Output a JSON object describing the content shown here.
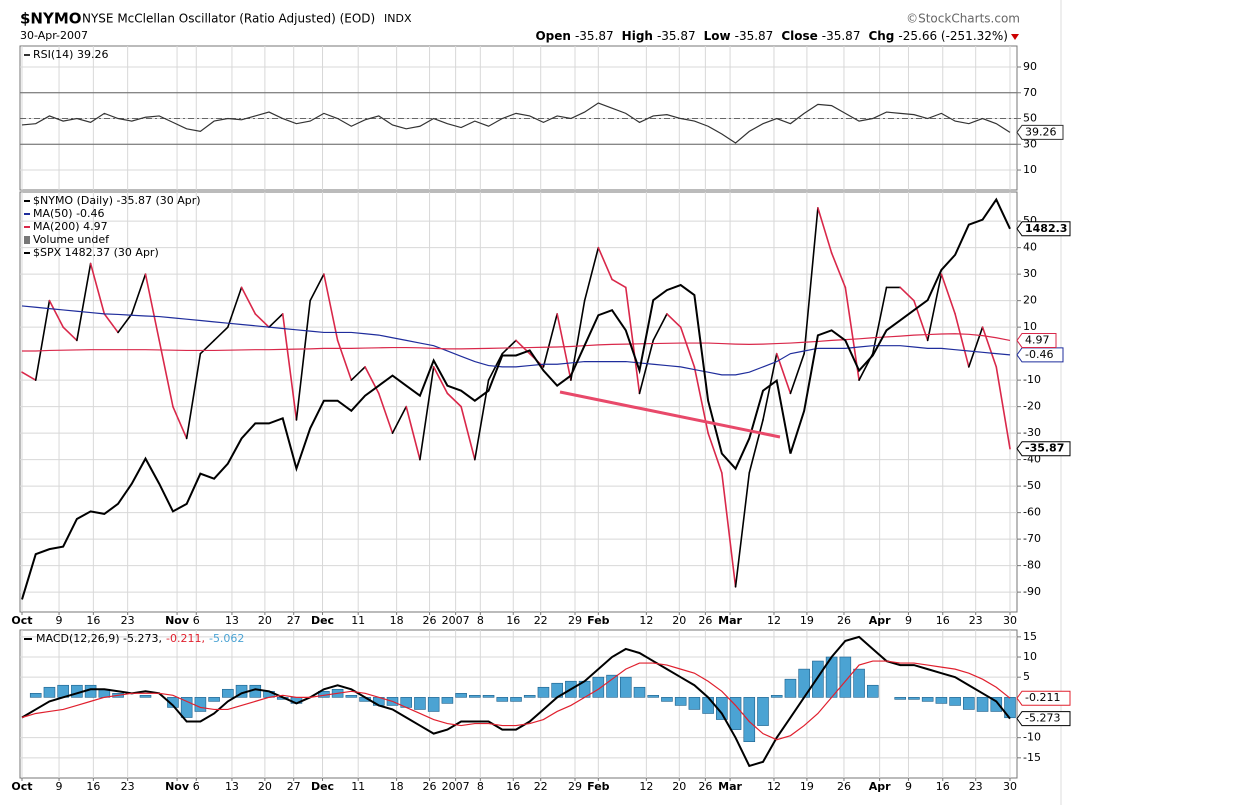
{
  "header": {
    "symbol": "$NYMO",
    "title": "NYSE McClellan Oscillator (Ratio Adjusted) (EOD)",
    "exchange": "INDX",
    "source": "©StockCharts.com",
    "date": "30-Apr-2007",
    "quote": [
      {
        "label": "Open",
        "value": "-35.87"
      },
      {
        "label": "High",
        "value": "-35.87"
      },
      {
        "label": "Low",
        "value": "-35.87"
      },
      {
        "label": "Close",
        "value": "-35.87"
      },
      {
        "label": "Chg",
        "value": "-25.66 (-251.32%)"
      }
    ]
  },
  "chart_data": [
    {
      "type": "line",
      "xlim": [
        0,
        72
      ],
      "ylim": [
        -5.5,
        106.3
      ],
      "yticks": [
        90,
        70,
        50,
        30,
        10
      ],
      "grid": true,
      "upper_line": 70,
      "lower_line": 30,
      "center_line": 50,
      "series": [
        {
          "name": "RSI(14) 39.26",
          "style": "line",
          "color": "#333333",
          "last_label": "39.26",
          "values": [
            45,
            46,
            52,
            48,
            50,
            47,
            54,
            50,
            48,
            51,
            52,
            47,
            42,
            40,
            48,
            50,
            49,
            52,
            55,
            50,
            46,
            48,
            54,
            50,
            44,
            49,
            52,
            45,
            42,
            44,
            50,
            46,
            43,
            48,
            44,
            50,
            54,
            52,
            47,
            52,
            50,
            55,
            62,
            58,
            54,
            47,
            52,
            53,
            50,
            48,
            44,
            38,
            31,
            40,
            46,
            50,
            46,
            54,
            61,
            60,
            54,
            48,
            50,
            55,
            54,
            53,
            50,
            54,
            48,
            46,
            50,
            46,
            39.26
          ]
        }
      ]
    },
    {
      "type": "line",
      "xlim": [
        0,
        72
      ],
      "ylim": [
        -97.5,
        61
      ],
      "y2lim": [
        1330,
        1497
      ],
      "yticks": [
        50,
        40,
        30,
        20,
        10,
        -10,
        -20,
        -30,
        -40,
        -50,
        -60,
        -70,
        -80,
        -90
      ],
      "grid": true,
      "volume_label": "Volume undef",
      "xticks": [
        {
          "value": 0,
          "label": "Oct"
        },
        {
          "value": 2.7,
          "label": "9"
        },
        {
          "value": 5.2,
          "label": "16"
        },
        {
          "value": 7.7,
          "label": "23"
        },
        {
          "value": 11.3,
          "label": "Nov"
        },
        {
          "value": 12.7,
          "label": "6"
        },
        {
          "value": 15.3,
          "label": "13"
        },
        {
          "value": 17.7,
          "label": "20"
        },
        {
          "value": 19.8,
          "label": "27"
        },
        {
          "value": 21.9,
          "label": "Dec"
        },
        {
          "value": 24.5,
          "label": "11"
        },
        {
          "value": 27.3,
          "label": "18"
        },
        {
          "value": 29.7,
          "label": "26"
        },
        {
          "value": 31.6,
          "label": "2007"
        },
        {
          "value": 33.4,
          "label": "8"
        },
        {
          "value": 35.8,
          "label": "16"
        },
        {
          "value": 37.8,
          "label": "22"
        },
        {
          "value": 40.3,
          "label": "29"
        },
        {
          "value": 42.0,
          "label": "Feb"
        },
        {
          "value": 45.5,
          "label": "12"
        },
        {
          "value": 47.9,
          "label": "20"
        },
        {
          "value": 49.8,
          "label": "26"
        },
        {
          "value": 51.6,
          "label": "Mar"
        },
        {
          "value": 54.8,
          "label": "12"
        },
        {
          "value": 57.2,
          "label": "19"
        },
        {
          "value": 59.9,
          "label": "26"
        },
        {
          "value": 62.5,
          "label": "Apr"
        },
        {
          "value": 64.6,
          "label": "9"
        },
        {
          "value": 67.1,
          "label": "16"
        },
        {
          "value": 69.5,
          "label": "23"
        },
        {
          "value": 72,
          "label": "30"
        }
      ],
      "series": [
        {
          "name": "$NYMO (Daily) -35.87 (30 Apr)",
          "style": "updown",
          "color": "#000000",
          "down_color": "#d9284a",
          "last_label": "-35.87",
          "values": [
            -7,
            -10,
            20,
            10,
            5,
            34,
            15,
            8,
            15,
            30,
            5,
            -20,
            -32,
            0,
            5,
            10,
            25,
            15,
            10,
            15,
            -25,
            20,
            30,
            5,
            -10,
            -5,
            -15,
            -30,
            -20,
            -40,
            -5,
            -15,
            -20,
            -40,
            -10,
            0,
            5,
            0,
            -5,
            15,
            -10,
            20,
            40,
            28,
            25,
            -15,
            5,
            15,
            10,
            -5,
            -30,
            -45,
            -88,
            -45,
            -25,
            0,
            -15,
            0,
            55,
            38,
            25,
            -10,
            0,
            25,
            25,
            20,
            5,
            30,
            15,
            -5,
            10,
            -5,
            -35.87
          ]
        },
        {
          "name": "MA(50) -0.46",
          "style": "line",
          "color": "#1f2d9c",
          "last_label": "-0.46",
          "values": [
            18,
            17.5,
            17,
            16.5,
            16,
            15.5,
            15,
            14.8,
            14.5,
            14.2,
            14,
            13.5,
            13,
            12.5,
            12,
            11.5,
            11,
            10.5,
            10,
            9.5,
            9,
            8.5,
            8,
            8,
            8,
            7.5,
            7,
            6,
            5,
            4,
            3,
            1,
            -1,
            -3,
            -4.5,
            -5,
            -5,
            -4.5,
            -4,
            -4,
            -3.5,
            -3,
            -3,
            -3,
            -3,
            -3.5,
            -4,
            -4.5,
            -5,
            -6,
            -7,
            -8,
            -8,
            -7,
            -5,
            -3,
            0,
            1,
            2,
            2,
            2,
            2.5,
            3,
            3,
            3,
            2.5,
            2,
            2,
            1.5,
            1,
            0.5,
            0,
            -0.46
          ]
        },
        {
          "name": "MA(200) 4.97",
          "style": "line",
          "color": "#d9284a",
          "last_label": "4.97",
          "values": [
            1,
            1,
            1.2,
            1.3,
            1.4,
            1.5,
            1.5,
            1.5,
            1.5,
            1.5,
            1.4,
            1.3,
            1.2,
            1.2,
            1.2,
            1.3,
            1.4,
            1.5,
            1.5,
            1.6,
            1.7,
            1.8,
            2,
            2,
            2,
            2.1,
            2.2,
            2.3,
            2.3,
            2.2,
            2,
            1.8,
            1.8,
            1.9,
            2,
            2.1,
            2.2,
            2.3,
            2.4,
            2.5,
            2.7,
            3,
            3.3,
            3.5,
            3.6,
            3.7,
            3.8,
            3.9,
            4,
            4,
            4,
            3.8,
            3.6,
            3.5,
            3.6,
            3.8,
            4,
            4.3,
            4.6,
            5,
            5.3,
            5.6,
            6,
            6.3,
            6.6,
            7,
            7.2,
            7.4,
            7.5,
            7.3,
            6.8,
            6,
            4.97
          ]
        },
        {
          "name": "$SPX 1482.37 (30 Apr)",
          "style": "line",
          "color": "#000000",
          "axis": "y2",
          "last_label": "1482.3",
          "values": [
            1335,
            1353,
            1355,
            1356,
            1367,
            1370,
            1369,
            1373,
            1381,
            1391,
            1381,
            1370,
            1373,
            1385,
            1383,
            1389,
            1399,
            1405,
            1405,
            1407,
            1387,
            1403,
            1414,
            1414,
            1410,
            1416,
            1420,
            1424,
            1420,
            1416,
            1430,
            1420,
            1418,
            1414,
            1418,
            1432,
            1432,
            1434,
            1426,
            1420,
            1424,
            1436,
            1448,
            1450,
            1442,
            1426,
            1454,
            1458,
            1460,
            1456,
            1414,
            1393,
            1387,
            1399,
            1418,
            1422,
            1393,
            1410,
            1440,
            1442,
            1438,
            1426,
            1432,
            1442,
            1446,
            1450,
            1454,
            1466,
            1472,
            1484,
            1486,
            1494,
            1482.37
          ]
        }
      ]
    },
    {
      "type": "line",
      "xlim": [
        0,
        72
      ],
      "ylim": [
        -20,
        16.7
      ],
      "yticks": [
        15,
        10,
        5,
        -10,
        -15
      ],
      "grid": true,
      "xticks": [
        {
          "value": 0,
          "label": "Oct"
        },
        {
          "value": 2.7,
          "label": "9"
        },
        {
          "value": 5.2,
          "label": "16"
        },
        {
          "value": 7.7,
          "label": "23"
        },
        {
          "value": 11.3,
          "label": "Nov"
        },
        {
          "value": 12.7,
          "label": "6"
        },
        {
          "value": 15.3,
          "label": "13"
        },
        {
          "value": 17.7,
          "label": "20"
        },
        {
          "value": 19.8,
          "label": "27"
        },
        {
          "value": 21.9,
          "label": "Dec"
        },
        {
          "value": 24.5,
          "label": "11"
        },
        {
          "value": 27.3,
          "label": "18"
        },
        {
          "value": 29.7,
          "label": "26"
        },
        {
          "value": 31.6,
          "label": "2007"
        },
        {
          "value": 33.4,
          "label": "8"
        },
        {
          "value": 35.8,
          "label": "16"
        },
        {
          "value": 37.8,
          "label": "22"
        },
        {
          "value": 40.3,
          "label": "29"
        },
        {
          "value": 42.0,
          "label": "Feb"
        },
        {
          "value": 45.5,
          "label": "12"
        },
        {
          "value": 47.9,
          "label": "20"
        },
        {
          "value": 49.8,
          "label": "26"
        },
        {
          "value": 51.6,
          "label": "Mar"
        },
        {
          "value": 54.8,
          "label": "12"
        },
        {
          "value": 57.2,
          "label": "19"
        },
        {
          "value": 59.9,
          "label": "26"
        },
        {
          "value": 62.5,
          "label": "Apr"
        },
        {
          "value": 64.6,
          "label": "9"
        },
        {
          "value": 67.1,
          "label": "16"
        },
        {
          "value": 69.5,
          "label": "23"
        },
        {
          "value": 72,
          "label": "30"
        }
      ],
      "series": [
        {
          "name": "MACD(12,26,9) -5.273,",
          "style": "line",
          "color": "#000000",
          "last_label": "-5.273",
          "values": [
            -5,
            -3,
            -1,
            0,
            1,
            2,
            2,
            1.5,
            1,
            1.5,
            1,
            -2,
            -6,
            -6,
            -4,
            -1,
            1,
            2,
            1.5,
            0,
            -1.5,
            0,
            2,
            3,
            2,
            0,
            -2,
            -3,
            -5,
            -7,
            -9,
            -8,
            -6,
            -6,
            -6,
            -8,
            -8,
            -6,
            -3,
            0,
            2,
            4,
            7,
            10,
            12,
            11,
            9,
            7,
            5,
            3,
            0,
            -4,
            -10,
            -17,
            -16,
            -10,
            -5,
            0,
            5,
            10,
            14,
            15,
            12,
            9,
            8,
            8,
            7,
            6,
            5,
            3,
            1,
            -1,
            -5.273
          ]
        },
        {
          "name": "-0.211,",
          "style": "line",
          "color": "#e0202e",
          "last_label": "-0.211",
          "values": [
            -5,
            -4,
            -3.5,
            -3,
            -2,
            -1,
            0,
            0.5,
            1,
            1,
            1,
            0.5,
            -1,
            -2.5,
            -3,
            -3,
            -2,
            -1,
            0,
            0.5,
            0,
            0,
            0.5,
            1,
            1.5,
            1,
            0,
            -1,
            -2.5,
            -4,
            -5.5,
            -6.5,
            -7,
            -6.5,
            -6.5,
            -7,
            -7,
            -6.5,
            -5.5,
            -3.5,
            -2,
            0,
            2,
            4.5,
            7,
            8.5,
            8.5,
            8,
            7,
            6,
            4,
            1.5,
            -2,
            -6,
            -9,
            -10.5,
            -9.5,
            -7,
            -4,
            0,
            4,
            8,
            9,
            9,
            8.5,
            8.5,
            8,
            7.5,
            7,
            6,
            4.5,
            2.5,
            -0.211
          ]
        },
        {
          "name": "-5.062",
          "style": "histogram",
          "color": "#4ba3d3",
          "edge_color": "#1d5f8a",
          "values": [
            0,
            1,
            2.5,
            3,
            3,
            3,
            2,
            1,
            0,
            0.5,
            0,
            -2.5,
            -5,
            -3.5,
            -1,
            2,
            3,
            3,
            1.5,
            -0.5,
            -1.5,
            0,
            1.5,
            2,
            0.5,
            -1,
            -2,
            -2,
            -2.5,
            -3,
            -3.5,
            -1.5,
            1,
            0.5,
            0.5,
            -1,
            -1,
            0.5,
            2.5,
            3.5,
            4,
            4,
            5,
            5.5,
            5,
            2.5,
            0.5,
            -1,
            -2,
            -3,
            -4,
            -5.5,
            -8,
            -11,
            -7,
            0.5,
            4.5,
            7,
            9,
            10,
            10,
            7,
            3,
            0,
            -0.5,
            -0.5,
            -1,
            -1.5,
            -2,
            -3,
            -3.5,
            -3.5,
            -5.062
          ]
        }
      ]
    }
  ]
}
